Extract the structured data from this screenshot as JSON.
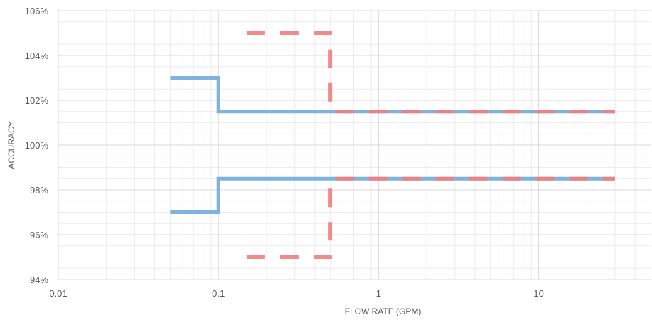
{
  "chart_data": {
    "type": "line",
    "xlabel": "FLOW RATE (GPM)",
    "ylabel": "ACCURACY",
    "x_scale": "log",
    "xlim": [
      0.01,
      50
    ],
    "ylim": [
      94,
      106
    ],
    "x_ticks": [
      {
        "value": 0.01,
        "label": "0.01"
      },
      {
        "value": 0.1,
        "label": "0.1"
      },
      {
        "value": 1,
        "label": "1"
      },
      {
        "value": 10,
        "label": "10"
      }
    ],
    "y_ticks": [
      {
        "value": 94,
        "label": "94%"
      },
      {
        "value": 96,
        "label": "96%"
      },
      {
        "value": 98,
        "label": "98%"
      },
      {
        "value": 100,
        "label": "100%"
      },
      {
        "value": 102,
        "label": "102%"
      },
      {
        "value": 104,
        "label": "104%"
      },
      {
        "value": 106,
        "label": "106%"
      }
    ],
    "grid": true,
    "legend": "none",
    "series": [
      {
        "color": "#7fb2dc",
        "style": "solid",
        "points": [
          [
            0.05,
            103
          ],
          [
            0.1,
            103
          ],
          [
            0.1,
            101.5
          ],
          [
            30,
            101.5
          ]
        ]
      },
      {
        "color": "#7fb2dc",
        "style": "solid",
        "points": [
          [
            0.05,
            97
          ],
          [
            0.1,
            97
          ],
          [
            0.1,
            98.5
          ],
          [
            30,
            98.5
          ]
        ]
      },
      {
        "color": "#f08080",
        "style": "dashed",
        "points": [
          [
            0.15,
            105
          ],
          [
            0.5,
            105
          ],
          [
            0.5,
            101.5
          ],
          [
            30,
            101.5
          ]
        ]
      },
      {
        "color": "#f08080",
        "style": "dashed",
        "points": [
          [
            0.15,
            95
          ],
          [
            0.5,
            95
          ],
          [
            0.5,
            98.5
          ],
          [
            30,
            98.5
          ]
        ]
      }
    ]
  }
}
